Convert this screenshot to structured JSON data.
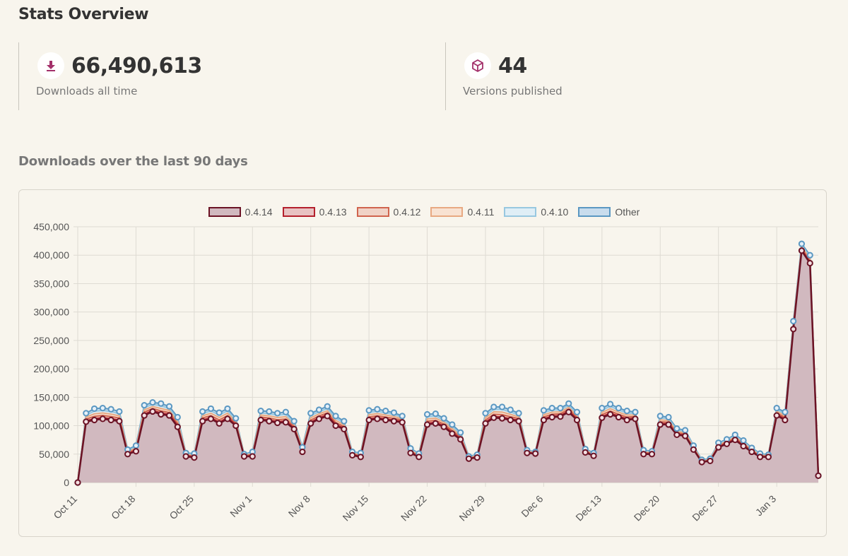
{
  "page_title": "Stats Overview",
  "stats": {
    "downloads": {
      "value": "66,490,613",
      "label": "Downloads all time",
      "icon": "download-icon"
    },
    "versions": {
      "value": "44",
      "label": "Versions published",
      "icon": "box-icon"
    }
  },
  "chart_section_title": "Downloads over the last 90 days",
  "colors": {
    "accent": "#a3306a",
    "v0414_line": "#6b1325",
    "v0414_fill": "#d1b9bf",
    "v0413_line": "#b4202c",
    "v0413_fill": "#e8c2c2",
    "v0412_line": "#d0644e",
    "v0412_fill": "#f0d2c6",
    "v0411_line": "#e8a982",
    "v0411_fill": "#f8e2d2",
    "v0410_line": "#98c8e0",
    "v0410_fill": "#dfeef6",
    "other_line": "#5b98c2",
    "other_fill": "#c8dced"
  },
  "chart_data": {
    "type": "area",
    "stacked": true,
    "legend": [
      "0.4.14",
      "0.4.13",
      "0.4.12",
      "0.4.11",
      "0.4.10",
      "Other"
    ],
    "legend_position": "top",
    "ylim": [
      0,
      450000
    ],
    "yticks": [
      0,
      50000,
      100000,
      150000,
      200000,
      250000,
      300000,
      350000,
      400000,
      450000
    ],
    "ytick_labels": [
      "0",
      "50,000",
      "100,000",
      "150,000",
      "200,000",
      "250,000",
      "300,000",
      "350,000",
      "400,000",
      "450,000"
    ],
    "xtick_labels": [
      "Oct 11",
      "Oct 18",
      "Oct 25",
      "Nov 1",
      "Nov 8",
      "Nov 15",
      "Nov 22",
      "Nov 29",
      "Dec 6",
      "Dec 13",
      "Dec 20",
      "Dec 27",
      "Jan 3"
    ],
    "xtick_every_days": 7,
    "grid": true,
    "base_series": {
      "name": "0.4.14",
      "values": [
        0,
        107000,
        110000,
        112000,
        110000,
        108000,
        50000,
        55000,
        118000,
        125000,
        120000,
        118000,
        98000,
        46000,
        44000,
        108000,
        112000,
        104000,
        112000,
        100000,
        46000,
        46000,
        110000,
        108000,
        105000,
        106000,
        94000,
        54000,
        104000,
        112000,
        117000,
        100000,
        94000,
        48000,
        45000,
        110000,
        112000,
        110000,
        108000,
        106000,
        52000,
        45000,
        102000,
        104000,
        98000,
        86000,
        76000,
        42000,
        44000,
        104000,
        114000,
        113000,
        110000,
        108000,
        52000,
        51000,
        110000,
        115000,
        116000,
        124000,
        110000,
        53000,
        47000,
        114000,
        120000,
        115000,
        110000,
        112000,
        50000,
        50000,
        102000,
        102000,
        84000,
        82000,
        58000,
        36000,
        38000,
        62000,
        68000,
        75000,
        64000,
        54000,
        45000,
        45000,
        118000,
        110000,
        270000,
        408000,
        386000,
        12000
      ]
    },
    "total_series": {
      "name": "Total (top of Other)",
      "values": [
        0,
        122000,
        130000,
        131000,
        129000,
        125000,
        58000,
        65000,
        136000,
        141000,
        139000,
        134000,
        115000,
        52000,
        51000,
        125000,
        130000,
        123000,
        130000,
        113000,
        50000,
        54000,
        126000,
        125000,
        122000,
        124000,
        108000,
        62000,
        122000,
        128000,
        134000,
        117000,
        108000,
        54000,
        52000,
        127000,
        129000,
        126000,
        123000,
        117000,
        60000,
        51000,
        120000,
        121000,
        113000,
        102000,
        88000,
        46000,
        49000,
        122000,
        133000,
        133000,
        128000,
        122000,
        57000,
        54000,
        127000,
        131000,
        131000,
        139000,
        124000,
        59000,
        52000,
        131000,
        138000,
        131000,
        126000,
        124000,
        57000,
        55000,
        117000,
        115000,
        95000,
        92000,
        65000,
        40000,
        42000,
        70000,
        76000,
        84000,
        74000,
        61000,
        51000,
        49000,
        131000,
        124000,
        284000,
        420000,
        400000,
        12000
      ]
    }
  }
}
